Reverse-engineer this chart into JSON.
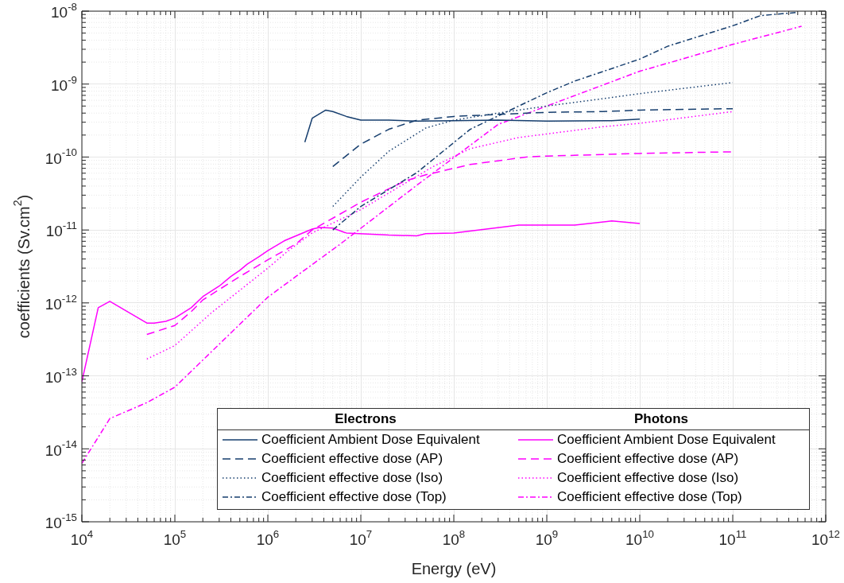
{
  "chart_data": {
    "type": "line",
    "xlabel": "Energy (eV)",
    "ylabel": "coefficients (Sv.cm$^{2}$)",
    "log": "xy",
    "grid": true,
    "legend": "bottom right",
    "marker": "none",
    "annotations": [
      "Electrons",
      "Photons"
    ],
    "xlim": [
      10000,
      1000000000000
    ],
    "ylim": [
      1e-15,
      1e-08
    ],
    "xticks": [
      {
        "value": 10000,
        "label": "10$^{4}$"
      },
      {
        "value": 100000,
        "label": "10$^{5}$"
      },
      {
        "value": 1000000,
        "label": "10$^{6}$"
      },
      {
        "value": 10000000,
        "label": "10$^{7}$"
      },
      {
        "value": 100000000,
        "label": "10$^{8}$"
      },
      {
        "value": 1000000000,
        "label": "10$^{9}$"
      },
      {
        "value": 10000000000,
        "label": "10$^{10}$"
      },
      {
        "value": 100000000000,
        "label": "10$^{11}$"
      },
      {
        "value": 1000000000000,
        "label": "10$^{12}$"
      }
    ],
    "yticks": [
      {
        "value": 1e-15,
        "label": "10$^{-15}$"
      },
      {
        "value": 1e-14,
        "label": "10$^{-14}$"
      },
      {
        "value": 1e-13,
        "label": "10$^{-13}$"
      },
      {
        "value": 1e-12,
        "label": "10$^{-12}$"
      },
      {
        "value": 1e-11,
        "label": "10$^{-11}$"
      },
      {
        "value": 1e-10,
        "label": "10$^{-10}$"
      },
      {
        "value": 1e-09,
        "label": "10$^{-9}$"
      },
      {
        "value": 1e-08,
        "label": "10$^{-8}$"
      }
    ],
    "series": [
      {
        "name": "Coefficient Ambient Dose Equivalent",
        "color": "#163e6e",
        "line_style": "solid",
        "x": [
          2500000,
          3000000,
          4200000,
          5000000,
          7000000,
          10000000,
          20000000,
          40000000,
          100000000,
          300000000,
          1000000000,
          5000000000,
          10000000000
        ],
        "values": [
          1.6e-10,
          3.4e-10,
          4.4e-10,
          4.2e-10,
          3.6e-10,
          3.2e-10,
          3.2e-10,
          3.1e-10,
          3.15e-10,
          3.2e-10,
          3.1e-10,
          3.15e-10,
          3.3e-10
        ]
      },
      {
        "name": "Coefficient effective dose (AP)",
        "color": "#163e6e",
        "line_style": "dashed",
        "x": [
          5000000,
          10000000,
          20000000,
          40000000,
          100000000,
          600000000,
          1000000000,
          4000000000,
          10000000000,
          100000000000
        ],
        "values": [
          7.4e-11,
          1.5e-10,
          2.4e-10,
          3.2e-10,
          3.6e-10,
          4e-10,
          4.1e-10,
          4.2e-10,
          4.4e-10,
          4.6e-10
        ]
      },
      {
        "name": "Coefficient effective dose (Iso)",
        "color": "#163e6e",
        "line_style": "dotted",
        "x": [
          5000000,
          10000000,
          20000000,
          50000000,
          100000000,
          300000000,
          1000000000,
          4000000000,
          10000000000,
          100000000000
        ],
        "values": [
          2.1e-11,
          5.3e-11,
          1.2e-10,
          2.5e-10,
          3.2e-10,
          4e-10,
          5e-10,
          6.3e-10,
          7.4e-10,
          1.05e-09
        ]
      },
      {
        "name": "Coefficient effective dose (Top)",
        "color": "#163e6e",
        "line_style": "dashdot",
        "x": [
          5000000,
          10000000,
          40000000,
          150000000,
          500000000,
          1000000000,
          2000000000,
          10000000000,
          20000000000,
          100000000000,
          200000000000,
          500000000000
        ],
        "values": [
          1e-11,
          2.1e-11,
          6.1e-11,
          2.4e-10,
          5e-10,
          7.6e-10,
          1.1e-09,
          2.2e-09,
          3.3e-09,
          6.3e-09,
          8.7e-09,
          9.6e-09
        ]
      },
      {
        "name": "Coefficient Ambient Dose Equivalent",
        "color": "#ff00ff",
        "line_style": "solid",
        "x": [
          10000,
          15000,
          20000,
          50000,
          60000,
          80000,
          100000,
          150000,
          200000,
          300000,
          400000,
          500000,
          600000,
          800000,
          1000000,
          1500000,
          3000000,
          3600000,
          5000000,
          6600000,
          7000000,
          20000000,
          40000000,
          50000000,
          100000000,
          500000000,
          2000000000,
          5000000000,
          10000000000
        ],
        "values": [
          8.3e-14,
          8.6e-13,
          1.05e-12,
          5.3e-13,
          5.3e-13,
          5.6e-13,
          6.2e-13,
          8.6e-13,
          1.22e-12,
          1.7e-12,
          2.3e-12,
          2.8e-12,
          3.4e-12,
          4.3e-12,
          5.2e-12,
          7.1e-12,
          1.03e-11,
          1.08e-11,
          1.06e-11,
          9.3e-12,
          9.1e-12,
          8.5e-12,
          8.3e-12,
          8.9e-12,
          9.1e-12,
          1.17e-11,
          1.17e-11,
          1.33e-11,
          1.23e-11
        ]
      },
      {
        "name": "Coefficient effective dose (AP)",
        "color": "#ff00ff",
        "line_style": "dashed",
        "x": [
          50000,
          100000,
          150000,
          200000,
          500000,
          1000000,
          2000000,
          3000000,
          10000000,
          30000000,
          50000000,
          150000000,
          600000000,
          1000000000,
          10000000000,
          100000000000
        ],
        "values": [
          3.7e-13,
          4.9e-13,
          7.6e-13,
          1.1e-12,
          2.3e-12,
          3.9e-12,
          6.4e-12,
          1e-11,
          2.4e-11,
          4.7e-11,
          5.7e-11,
          7.9e-11,
          1e-10,
          1.03e-10,
          1.12e-10,
          1.18e-10
        ]
      },
      {
        "name": "Coefficient effective dose (Iso)",
        "color": "#ff00ff",
        "line_style": "dotted",
        "x": [
          50000,
          100000,
          250000,
          1000000,
          1600000,
          3000000,
          10000000,
          60000000,
          150000000,
          500000000,
          4000000000,
          10000000000,
          100000000000
        ],
        "values": [
          1.7e-13,
          2.6e-13,
          7.4e-13,
          3e-12,
          5e-12,
          9.1e-12,
          1.9e-11,
          7.4e-11,
          1.3e-10,
          1.85e-10,
          2.6e-10,
          2.9e-10,
          4.2e-10
        ]
      },
      {
        "name": "Coefficient effective dose (Top)",
        "color": "#ff00ff",
        "line_style": "dashdot",
        "x": [
          10000,
          20000,
          50000,
          100000,
          1000000,
          2000000,
          6000000,
          40000000,
          300000000,
          1000000000,
          10000000000,
          100000000000,
          550000000000
        ],
        "values": [
          6.3e-15,
          2.6e-14,
          4.3e-14,
          7e-14,
          1.2e-12,
          2.3e-12,
          6.4e-12,
          4.1e-11,
          2.8e-10,
          5e-10,
          1.5e-09,
          3.5e-09,
          6.2e-09
        ]
      }
    ]
  }
}
